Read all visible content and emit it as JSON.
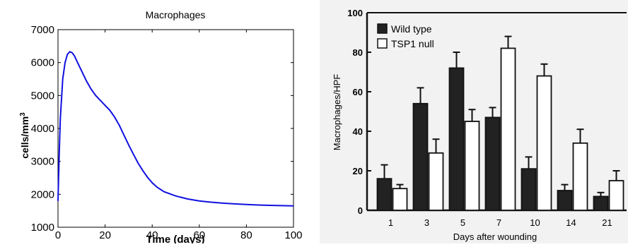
{
  "charts": [
    {
      "type": "line",
      "title": "Macrophages",
      "xlabel": "Time (days)",
      "ylabel_main": "cells/mm",
      "ylabel_sup": "3",
      "xlim": [
        0,
        100
      ],
      "ylim": [
        1000,
        7000
      ],
      "xticks": [
        0,
        20,
        40,
        60,
        80,
        100
      ],
      "yticks": [
        1000,
        2000,
        3000,
        4000,
        5000,
        6000,
        7000
      ],
      "line_color": "#1010e0",
      "series": [
        {
          "x": [
            0,
            0.5,
            1,
            2,
            3,
            4,
            5,
            6,
            7,
            8,
            10,
            12,
            14,
            16,
            18,
            20,
            22,
            24,
            26,
            28,
            30,
            32,
            34,
            36,
            38,
            40,
            42,
            45,
            50,
            55,
            60,
            65,
            70,
            75,
            80,
            85,
            90,
            95,
            100
          ],
          "y": [
            1800,
            3200,
            4300,
            5500,
            6000,
            6250,
            6330,
            6300,
            6200,
            6050,
            5750,
            5450,
            5200,
            5000,
            4850,
            4700,
            4550,
            4350,
            4100,
            3800,
            3500,
            3220,
            2950,
            2720,
            2520,
            2350,
            2220,
            2080,
            1950,
            1860,
            1800,
            1760,
            1730,
            1710,
            1690,
            1675,
            1665,
            1655,
            1650
          ]
        }
      ]
    },
    {
      "type": "bar",
      "xlabel": "Days after wounding",
      "ylabel": "Macrophages/HPF",
      "ylim": [
        0,
        100
      ],
      "yticks": [
        0,
        20,
        40,
        60,
        80,
        100
      ],
      "categories": [
        "1",
        "3",
        "5",
        "7",
        "10",
        "14",
        "21"
      ],
      "legend": [
        "Wild type",
        "TSP1 null"
      ],
      "series": [
        {
          "name": "Wild type",
          "color": "#222222",
          "values": [
            16,
            54,
            72,
            47,
            21,
            10,
            7
          ],
          "errors": [
            7,
            8,
            8,
            5,
            6,
            3,
            2
          ]
        },
        {
          "name": "TSP1 null",
          "color": "#ffffff",
          "values": [
            11,
            29,
            45,
            82,
            68,
            34,
            15
          ],
          "errors": [
            2,
            7,
            6,
            6,
            6,
            7,
            5
          ]
        }
      ]
    }
  ]
}
